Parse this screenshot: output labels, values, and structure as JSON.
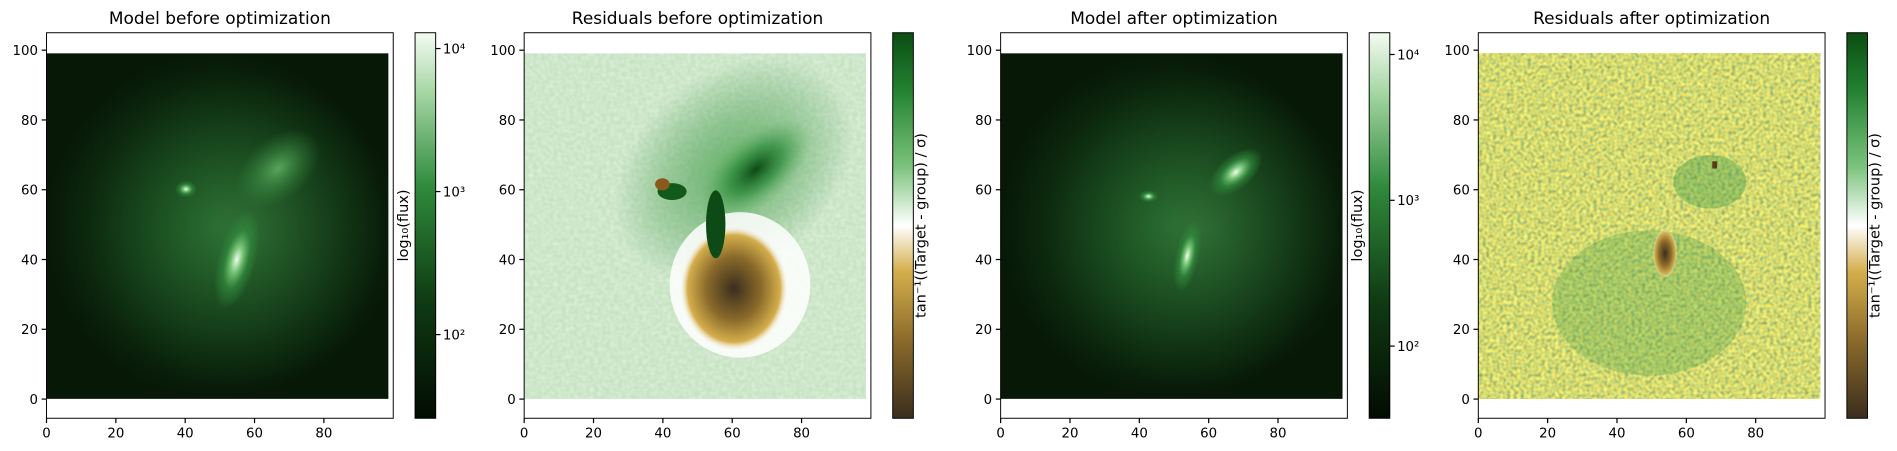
{
  "chart_data": [
    {
      "type": "image",
      "title": "Model before optimization",
      "xlim": [
        0,
        100
      ],
      "ylim": [
        -5.5,
        105
      ],
      "xticks": [
        0,
        20,
        40,
        60,
        80
      ],
      "yticks": [
        0,
        20,
        40,
        60,
        80,
        100
      ],
      "colorbar": {
        "label": "log₁₀(flux)",
        "scale": "log",
        "lim": [
          26,
          12900
        ],
        "ticks": [
          {
            "value": 100,
            "label": "10²"
          },
          {
            "value": 1000,
            "label": "10³"
          },
          {
            "value": 10000,
            "label": "10⁴"
          }
        ]
      }
    },
    {
      "type": "image",
      "title": "Residuals before optimization",
      "xlim": [
        0,
        100
      ],
      "ylim": [
        -5.5,
        105
      ],
      "xticks": [
        0,
        20,
        40,
        60,
        80
      ],
      "yticks": [
        0,
        20,
        40,
        60,
        80,
        100
      ],
      "colorbar": {
        "label": "tan⁻¹((Target - group) / σ)"
      }
    },
    {
      "type": "image",
      "title": "Model after optimization",
      "xlim": [
        0,
        100
      ],
      "ylim": [
        -5.5,
        105
      ],
      "xticks": [
        0,
        20,
        40,
        60,
        80
      ],
      "yticks": [
        0,
        20,
        40,
        60,
        80,
        100
      ],
      "colorbar": {
        "label": "log₁₀(flux)",
        "scale": "log",
        "lim": [
          32,
          14100
        ],
        "ticks": [
          {
            "value": 100,
            "label": "10²"
          },
          {
            "value": 1000,
            "label": "10³"
          },
          {
            "value": 10000,
            "label": "10⁴"
          }
        ]
      }
    },
    {
      "type": "image",
      "title": "Residuals after optimization",
      "xlim": [
        0,
        100
      ],
      "ylim": [
        -5.5,
        105
      ],
      "xticks": [
        0,
        20,
        40,
        60,
        80
      ],
      "yticks": [
        0,
        20,
        40,
        60,
        80,
        100
      ],
      "colorbar": {
        "label": "tan⁻¹((Target - group) / σ)"
      }
    }
  ]
}
